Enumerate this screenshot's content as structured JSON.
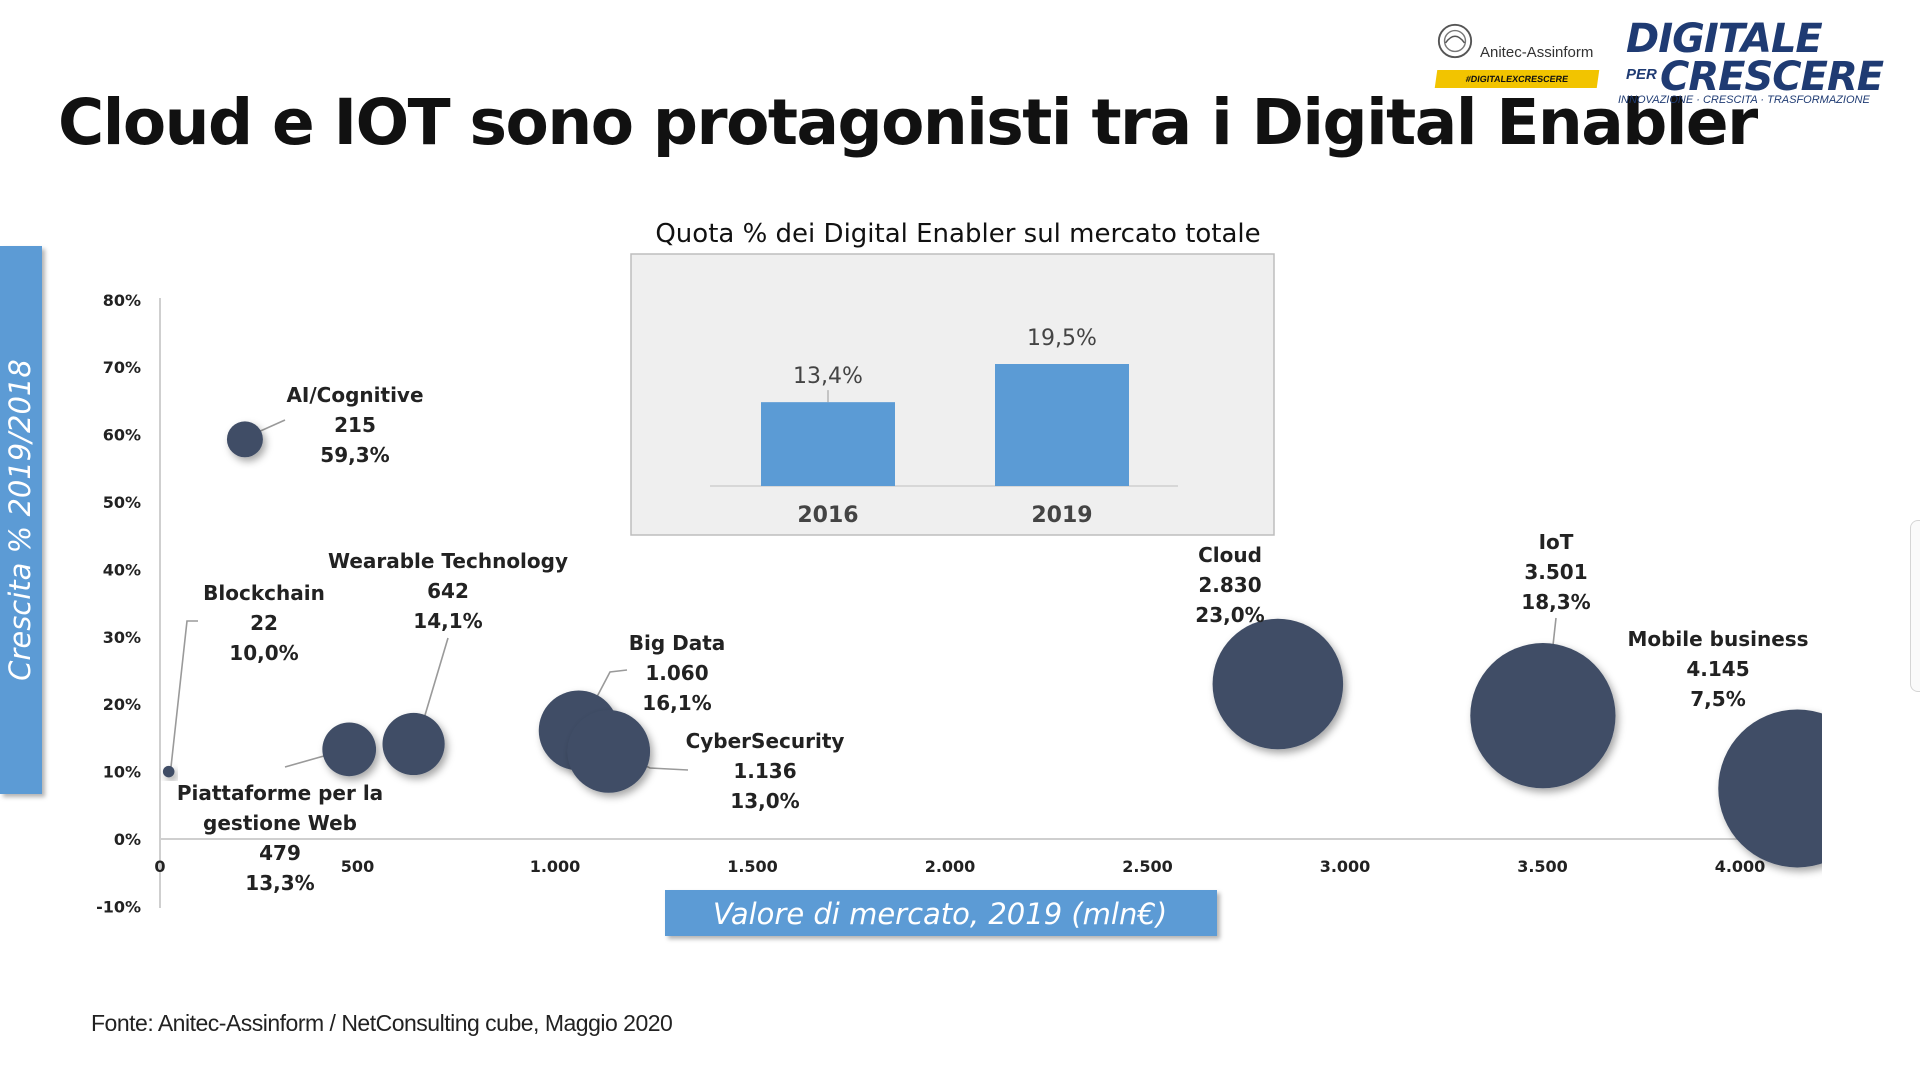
{
  "slide": {
    "title": "Cloud e IOT sono protagonisti tra i Digital Enabler",
    "source": "Fonte: Anitec-Assinform / NetConsulting cube, Maggio  2020"
  },
  "logos": {
    "anitec": {
      "name": "Anitec-Assinform",
      "tag": "#DIGITALEXCRESCERE"
    },
    "digitale_per_crescere": {
      "line1": "DIGITALE",
      "per": "PER",
      "line2": "CRESCERE",
      "subtitle": "INNOVAZIONE · CRESCITA · TRASFORMAZIONE"
    }
  },
  "colors": {
    "bubble": "#3f4d66",
    "accent_blue": "#5b9bd5",
    "inset_bar": "#5b9bd5",
    "title": "#111111",
    "logo_blue": "#1f3b73",
    "tag_yellow": "#f2c400"
  },
  "chart_data": [
    {
      "type": "scatter",
      "subtype": "bubble",
      "xlabel": "Valore di mercato, 2019 (mln€)",
      "ylabel": "Crescita % 2019/2018",
      "xlim": [
        0,
        4200
      ],
      "ylim": [
        -10,
        80
      ],
      "x_ticks": [
        0,
        500,
        1000,
        1500,
        2000,
        2500,
        3000,
        3500,
        4000
      ],
      "x_tick_labels": [
        "0",
        "500",
        "1.000",
        "1.500",
        "2.000",
        "2.500",
        "3.000",
        "3.500",
        "4.000"
      ],
      "y_ticks": [
        -10,
        0,
        10,
        20,
        30,
        40,
        50,
        60,
        70,
        80
      ],
      "y_tick_labels": [
        "-10%",
        "0%",
        "10%",
        "20%",
        "30%",
        "40%",
        "50%",
        "60%",
        "70%",
        "80%"
      ],
      "grid": false,
      "points": [
        {
          "name": "AI/Cognitive",
          "value_label": "215",
          "growth_label": "59,3%",
          "x": 215,
          "y": 59.3
        },
        {
          "name": "Blockchain",
          "value_label": "22",
          "growth_label": "10,0%",
          "x": 22,
          "y": 10.0
        },
        {
          "name": "Piattaforme per la gestione Web",
          "value_label": "479",
          "growth_label": "13,3%",
          "x": 479,
          "y": 13.3
        },
        {
          "name": "Wearable Technology",
          "value_label": "642",
          "growth_label": "14,1%",
          "x": 642,
          "y": 14.1
        },
        {
          "name": "Big Data",
          "value_label": "1.060",
          "growth_label": "16,1%",
          "x": 1060,
          "y": 16.1
        },
        {
          "name": "CyberSecurity",
          "value_label": "1.136",
          "growth_label": "13,0%",
          "x": 1136,
          "y": 13.0
        },
        {
          "name": "Cloud",
          "value_label": "2.830",
          "growth_label": "23,0%",
          "x": 2830,
          "y": 23.0
        },
        {
          "name": "IoT",
          "value_label": "3.501",
          "growth_label": "18,3%",
          "x": 3501,
          "y": 18.3
        },
        {
          "name": "Mobile business",
          "value_label": "4.145",
          "growth_label": "7,5%",
          "x": 4145,
          "y": 7.5
        }
      ]
    },
    {
      "type": "bar",
      "title": "Quota % dei Digital Enabler sul mercato totale",
      "categories": [
        "2016",
        "2019"
      ],
      "values": [
        13.4,
        19.5
      ],
      "value_labels": [
        "13,4%",
        "19,5%"
      ],
      "ylim": [
        0,
        22
      ]
    }
  ]
}
